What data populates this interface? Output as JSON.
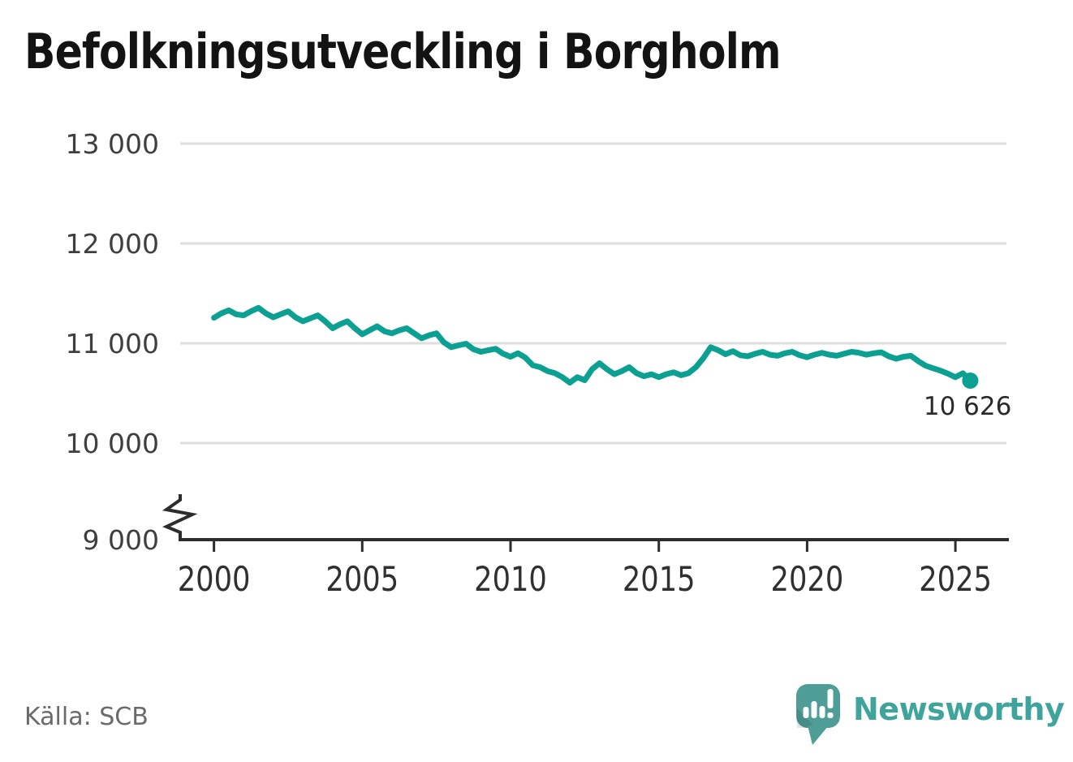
{
  "header": {
    "title": "Befolkningsutveckling i Borgholm"
  },
  "footer": {
    "source": "Källa: SCB",
    "brand": "Newsworthy"
  },
  "colors": {
    "line": "#0BA091",
    "grid": "#DEDEDE",
    "axis": "#2D2D2D",
    "tick_label": "#3F3F3F",
    "x_tick_label": "#303030",
    "end_label": "#2A2A2A",
    "source_text": "#6A6A6E",
    "logo_bubble": "#4E9D97",
    "wordmark": "#3FA49B"
  },
  "chart_data": {
    "type": "line",
    "title": "Befolkningsutveckling i Borgholm",
    "xlabel": "",
    "ylabel": "",
    "xlim": [
      1998.9,
      2026.7
    ],
    "ylim": [
      9000,
      13000
    ],
    "y_axis_break_below": 10000,
    "grid": "horizontal",
    "legend": "none",
    "gridlines_at": [
      13000,
      12000,
      11000,
      10000
    ],
    "y_ticks": [
      {
        "value": 13000,
        "label": "13 000"
      },
      {
        "value": 12000,
        "label": "12 000"
      },
      {
        "value": 11000,
        "label": "11 000"
      },
      {
        "value": 10000,
        "label": "10 000"
      },
      {
        "value": 9000,
        "label": "9 000"
      }
    ],
    "x_ticks": [
      {
        "value": 2000,
        "label": "2000"
      },
      {
        "value": 2005,
        "label": "2005"
      },
      {
        "value": 2010,
        "label": "2010"
      },
      {
        "value": 2015,
        "label": "2015"
      },
      {
        "value": 2020,
        "label": "2020"
      },
      {
        "value": 2025,
        "label": "2025"
      }
    ],
    "x_start": 2000.0,
    "x_step": 0.25,
    "x_end": 2025.5,
    "values": [
      11255,
      11300,
      11330,
      11290,
      11280,
      11320,
      11355,
      11300,
      11260,
      11290,
      11320,
      11260,
      11220,
      11250,
      11280,
      11220,
      11150,
      11190,
      11220,
      11150,
      11090,
      11130,
      11170,
      11120,
      11100,
      11130,
      11150,
      11100,
      11050,
      11080,
      11100,
      11010,
      10960,
      10980,
      10995,
      10940,
      10915,
      10930,
      10945,
      10895,
      10865,
      10900,
      10855,
      10780,
      10760,
      10720,
      10700,
      10660,
      10605,
      10660,
      10630,
      10740,
      10800,
      10740,
      10690,
      10720,
      10760,
      10700,
      10670,
      10690,
      10660,
      10690,
      10710,
      10680,
      10700,
      10760,
      10850,
      10960,
      10930,
      10890,
      10920,
      10880,
      10870,
      10895,
      10915,
      10885,
      10875,
      10900,
      10915,
      10880,
      10860,
      10885,
      10905,
      10885,
      10875,
      10895,
      10915,
      10905,
      10885,
      10900,
      10910,
      10870,
      10845,
      10865,
      10875,
      10820,
      10775,
      10750,
      10725,
      10695,
      10660,
      10700,
      10626
    ],
    "last_value": 10626,
    "end_label": "10 626"
  }
}
